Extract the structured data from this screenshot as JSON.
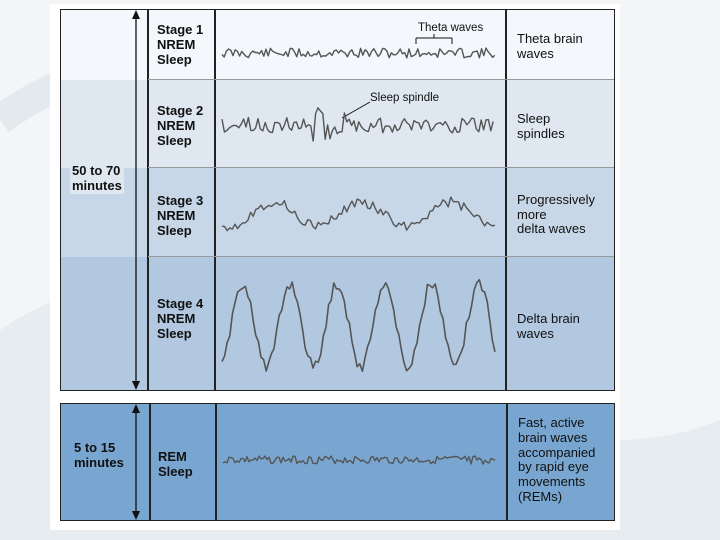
{
  "top_section": {
    "duration": "50 to 70\nminutes",
    "stages": [
      {
        "name": "Stage 1\nNREM\nSleep",
        "description": "Theta brain\nwaves",
        "annotation": "Theta waves"
      },
      {
        "name": "Stage 2\nNREM\nSleep",
        "description": "Sleep\nspindles",
        "annotation": "Sleep spindle"
      },
      {
        "name": "Stage 3\nNREM\nSleep",
        "description": "Progressively\nmore\ndelta waves"
      },
      {
        "name": "Stage 4\nNREM\nSleep",
        "description": "Delta brain\nwaves"
      }
    ]
  },
  "bottom_section": {
    "duration": "5 to 15\nminutes",
    "name": "REM\nSleep",
    "description": "Fast, active\nbrain waves\naccompanied\nby rapid eye\nmovements\n(REMs)"
  },
  "colors": {
    "row1": "#f4f7fb",
    "row2": "#dfe8f1",
    "row3": "#c7d7e8",
    "row4": "#b1c8e0",
    "rem": "#78a6d0",
    "wave": "#555555"
  }
}
